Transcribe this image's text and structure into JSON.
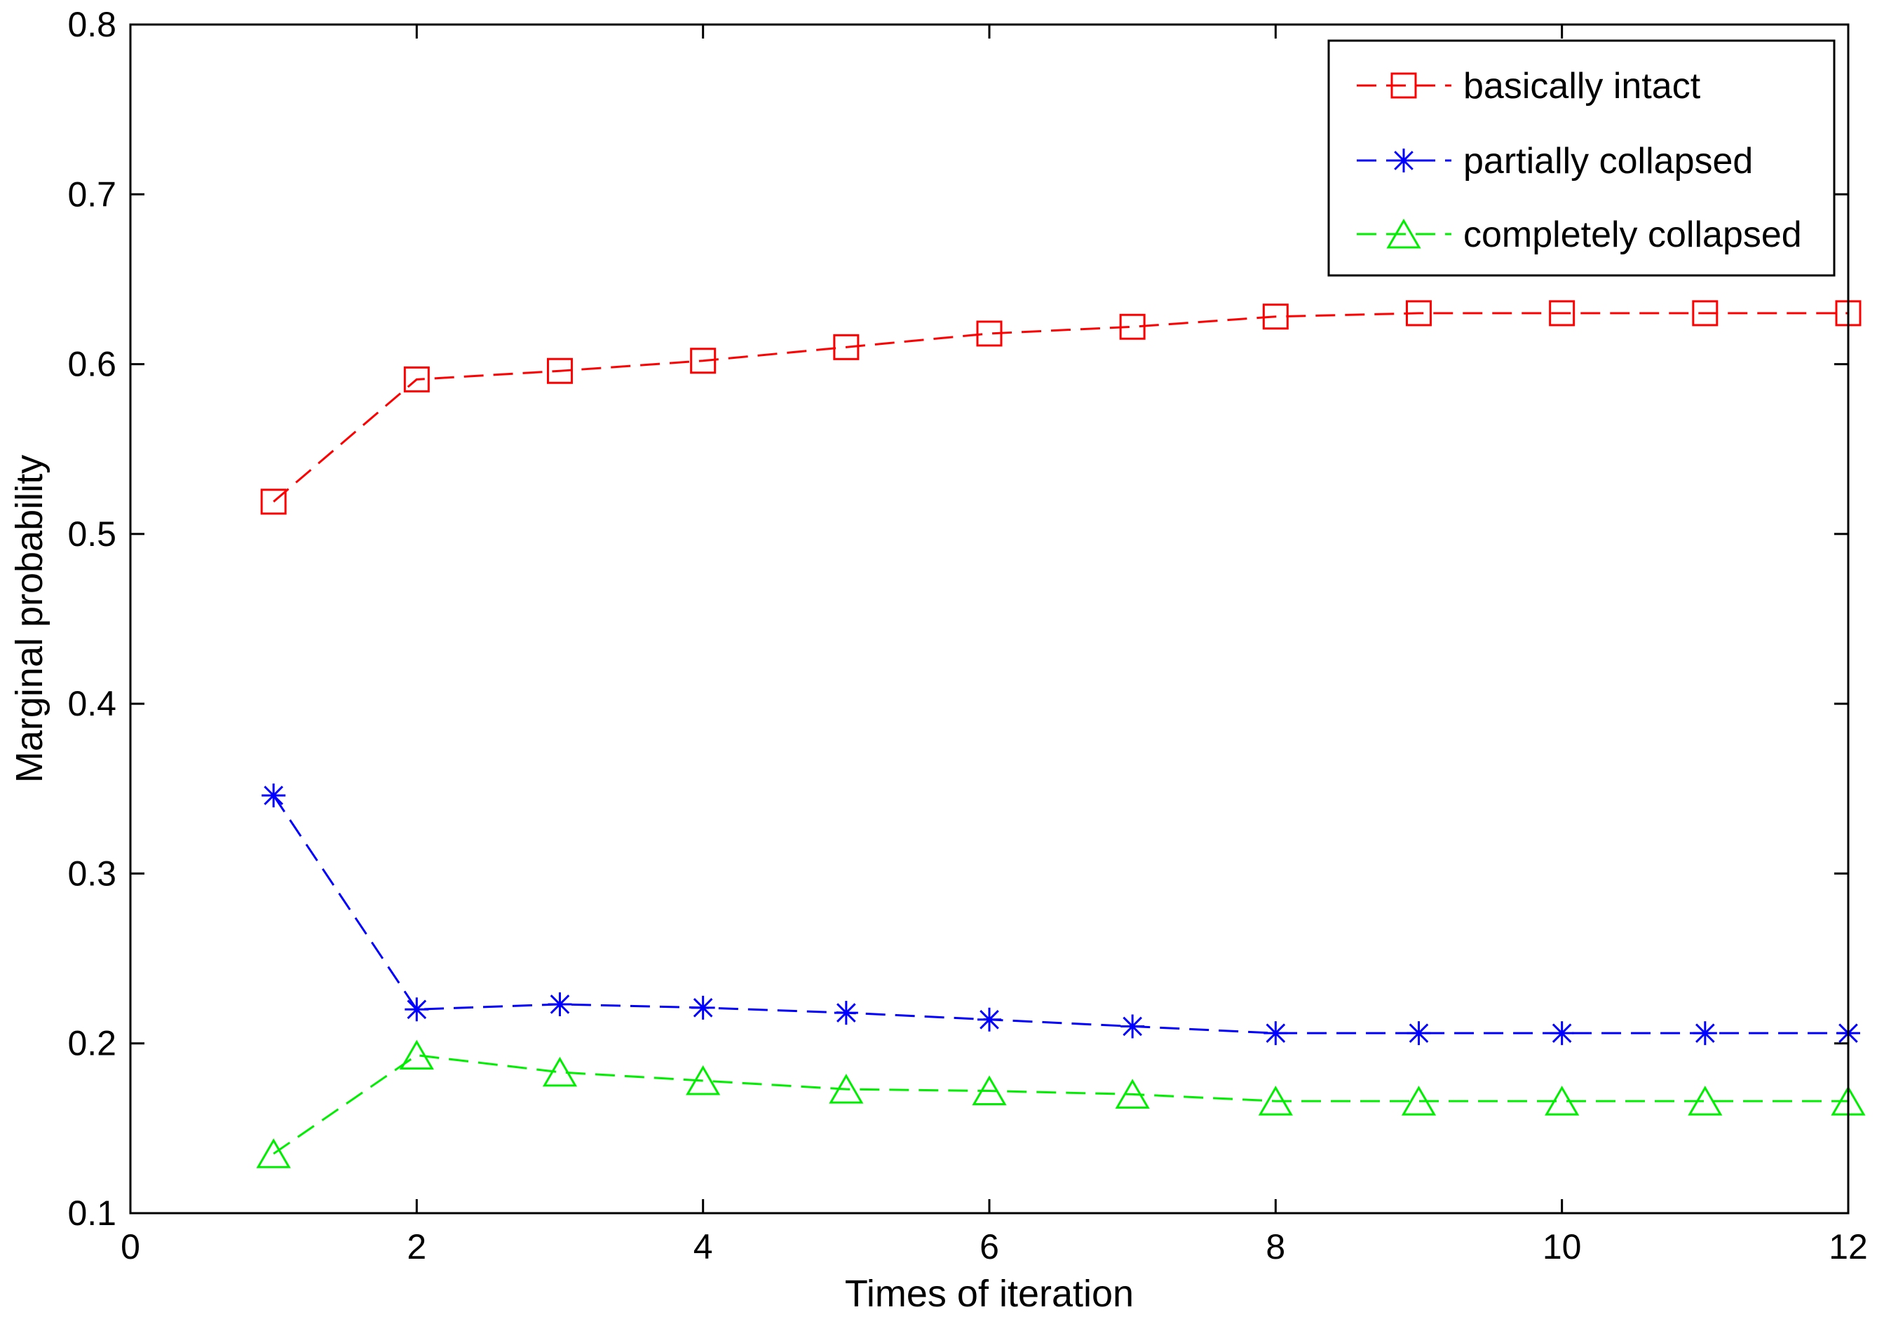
{
  "chart_data": {
    "type": "line",
    "title": "",
    "xlabel": "Times of iteration",
    "ylabel": "Marginal probability",
    "xlim": [
      0,
      12
    ],
    "ylim": [
      0.1,
      0.8
    ],
    "xticks": [
      0,
      2,
      4,
      6,
      8,
      10,
      12
    ],
    "yticks": [
      0.1,
      0.2,
      0.3,
      0.4,
      0.5,
      0.6,
      0.7,
      0.8
    ],
    "xtick_labels": [
      "0",
      "2",
      "4",
      "6",
      "8",
      "10",
      "12"
    ],
    "ytick_labels": [
      "0.1",
      "0.2",
      "0.3",
      "0.4",
      "0.5",
      "0.6",
      "0.7",
      "0.8"
    ],
    "grid": false,
    "legend_position": "top-right",
    "x": [
      1,
      2,
      3,
      4,
      5,
      6,
      7,
      8,
      9,
      10,
      11,
      12
    ],
    "series": [
      {
        "name": "basically intact",
        "color": "#ff0000",
        "marker": "square",
        "values": [
          0.519,
          0.591,
          0.596,
          0.602,
          0.61,
          0.618,
          0.622,
          0.628,
          0.63,
          0.63,
          0.63,
          0.63
        ]
      },
      {
        "name": "partially collapsed",
        "color": "#0000ff",
        "marker": "asterisk",
        "values": [
          0.346,
          0.22,
          0.223,
          0.221,
          0.218,
          0.214,
          0.21,
          0.206,
          0.206,
          0.206,
          0.206,
          0.206
        ]
      },
      {
        "name": "completely collapsed",
        "color": "#00ee00",
        "marker": "triangle",
        "values": [
          0.135,
          0.193,
          0.183,
          0.178,
          0.173,
          0.172,
          0.17,
          0.166,
          0.166,
          0.166,
          0.166,
          0.166
        ]
      }
    ]
  }
}
